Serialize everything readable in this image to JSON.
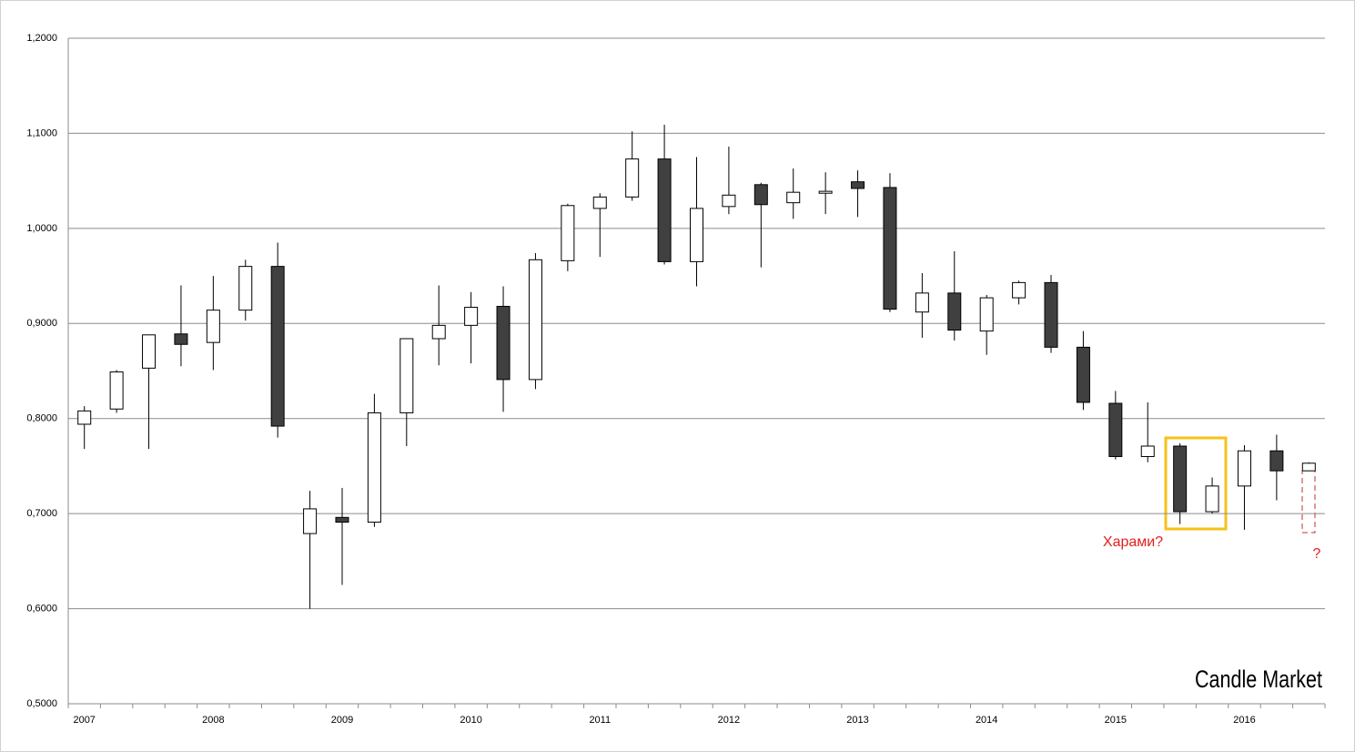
{
  "chart_data": {
    "type": "candlestick",
    "categories": [
      "2007",
      null,
      null,
      null,
      "2008",
      null,
      null,
      null,
      "2009",
      null,
      null,
      null,
      "2010",
      null,
      null,
      null,
      "2011",
      null,
      null,
      null,
      "2012",
      null,
      null,
      null,
      "2013",
      null,
      null,
      null,
      "2014",
      null,
      null,
      null,
      "2015",
      null,
      null,
      null,
      "2016",
      null,
      null
    ],
    "open": [
      0.794,
      0.81,
      0.853,
      0.889,
      0.88,
      0.914,
      0.96,
      0.679,
      0.696,
      0.691,
      0.806,
      0.884,
      0.898,
      0.918,
      0.841,
      0.966,
      1.021,
      1.033,
      1.073,
      0.965,
      1.023,
      1.046,
      1.027,
      1.037,
      1.049,
      1.043,
      0.912,
      0.932,
      0.892,
      0.927,
      0.943,
      0.875,
      0.816,
      0.76,
      0.771,
      0.702,
      0.729,
      0.766,
      0.745
    ],
    "high": [
      0.813,
      0.851,
      0.888,
      0.94,
      0.95,
      0.967,
      0.985,
      0.724,
      0.727,
      0.826,
      0.884,
      0.94,
      0.933,
      0.939,
      0.974,
      1.026,
      1.037,
      1.102,
      1.109,
      1.075,
      1.086,
      1.048,
      1.063,
      1.059,
      1.061,
      1.058,
      0.953,
      0.976,
      0.93,
      0.945,
      0.951,
      0.892,
      0.829,
      0.817,
      0.774,
      0.738,
      0.772,
      0.783,
      0.754
    ],
    "low": [
      0.768,
      0.806,
      0.768,
      0.855,
      0.851,
      0.903,
      0.78,
      0.6,
      0.625,
      0.686,
      0.771,
      0.856,
      0.858,
      0.807,
      0.831,
      0.955,
      0.97,
      1.029,
      0.962,
      0.939,
      1.015,
      0.959,
      1.01,
      1.015,
      1.012,
      0.912,
      0.885,
      0.882,
      0.867,
      0.92,
      0.869,
      0.809,
      0.757,
      0.754,
      0.689,
      0.7,
      0.683,
      0.714,
      0.745
    ],
    "close": [
      0.808,
      0.849,
      0.888,
      0.878,
      0.914,
      0.96,
      0.792,
      0.705,
      0.691,
      0.806,
      0.884,
      0.898,
      0.917,
      0.841,
      0.967,
      1.024,
      1.033,
      1.073,
      0.965,
      1.021,
      1.035,
      1.025,
      1.038,
      1.039,
      1.042,
      0.915,
      0.932,
      0.893,
      0.927,
      0.943,
      0.875,
      0.817,
      0.76,
      0.771,
      0.702,
      0.729,
      0.766,
      0.745,
      0.753
    ],
    "up_color": "#ffffff",
    "down_color": "#404040",
    "ylim": [
      0.5,
      1.2
    ],
    "yticks": [
      {
        "value": 0.5,
        "label": "0,5000"
      },
      {
        "value": 0.6,
        "label": "0,6000"
      },
      {
        "value": 0.7,
        "label": "0,7000"
      },
      {
        "value": 0.8,
        "label": "0,8000"
      },
      {
        "value": 0.9,
        "label": "0,9000"
      },
      {
        "value": 1.0,
        "label": "1,0000"
      },
      {
        "value": 1.1,
        "label": "1,1000"
      },
      {
        "value": 1.2,
        "label": "1,2000"
      }
    ],
    "grid": true,
    "annotations": [
      "Харами?",
      "?"
    ],
    "watermark": "Candle Market"
  }
}
